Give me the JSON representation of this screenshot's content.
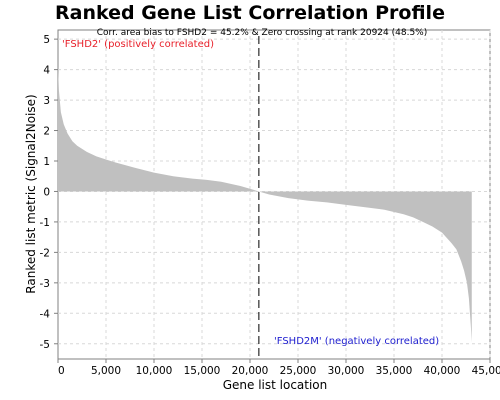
{
  "chart_data": {
    "type": "area",
    "title": "Ranked Gene List Correlation Profile",
    "subtitle": "Corr. area bias to FSHD2 = 45.2% & Zero crossing at rank 20924 (48.5%)",
    "xlabel": "Gene list location",
    "ylabel": "Ranked list metric (Signal2Noise)",
    "xlim": [
      0,
      45000
    ],
    "ylim": [
      -5.5,
      5.3
    ],
    "x_ticks": [
      0,
      5000,
      10000,
      15000,
      20000,
      25000,
      30000,
      35000,
      40000,
      45000
    ],
    "x_tick_labels": [
      "0",
      "5,000",
      "10,000",
      "15,000",
      "20,000",
      "25,000",
      "30,000",
      "35,000",
      "40,000",
      "45,000"
    ],
    "y_ticks": [
      5,
      4,
      3,
      2,
      1,
      0,
      -1,
      -2,
      -3,
      -4,
      -5
    ],
    "y_tick_labels": [
      "5",
      "4",
      "3",
      "2",
      "1",
      "0",
      "-1",
      "-2",
      "-3",
      "-4",
      "-5"
    ],
    "grid": true,
    "zero_crossing_rank": 20924,
    "fill_color": "#c0c0c0",
    "annotations": {
      "positive_label": "'FSHD2' (positively correlated)",
      "negative_label": "'FSHD2M' (negatively correlated)",
      "positive_color": "#e8202a",
      "negative_color": "#2020d0"
    },
    "series": [
      {
        "x": [
          0,
          100,
          300,
          600,
          1000,
          1500,
          2000,
          3000,
          4000,
          5000,
          6000,
          8000,
          10000,
          12000,
          14000,
          15500,
          17000,
          19000,
          20924,
          22000,
          24000,
          26000,
          28000,
          30000,
          32000,
          34000,
          36000,
          37000,
          38000,
          39000,
          40000,
          41000,
          41500,
          42000,
          42300,
          42600,
          42800,
          43000,
          43100
        ],
        "values": [
          4.1,
          3.3,
          2.6,
          2.2,
          1.9,
          1.65,
          1.5,
          1.3,
          1.15,
          1.05,
          0.95,
          0.78,
          0.62,
          0.5,
          0.42,
          0.38,
          0.32,
          0.18,
          0.0,
          -0.1,
          -0.22,
          -0.3,
          -0.36,
          -0.44,
          -0.52,
          -0.6,
          -0.75,
          -0.85,
          -1.0,
          -1.15,
          -1.35,
          -1.7,
          -1.9,
          -2.3,
          -2.6,
          -3.0,
          -3.5,
          -4.4,
          -4.95
        ]
      }
    ]
  }
}
